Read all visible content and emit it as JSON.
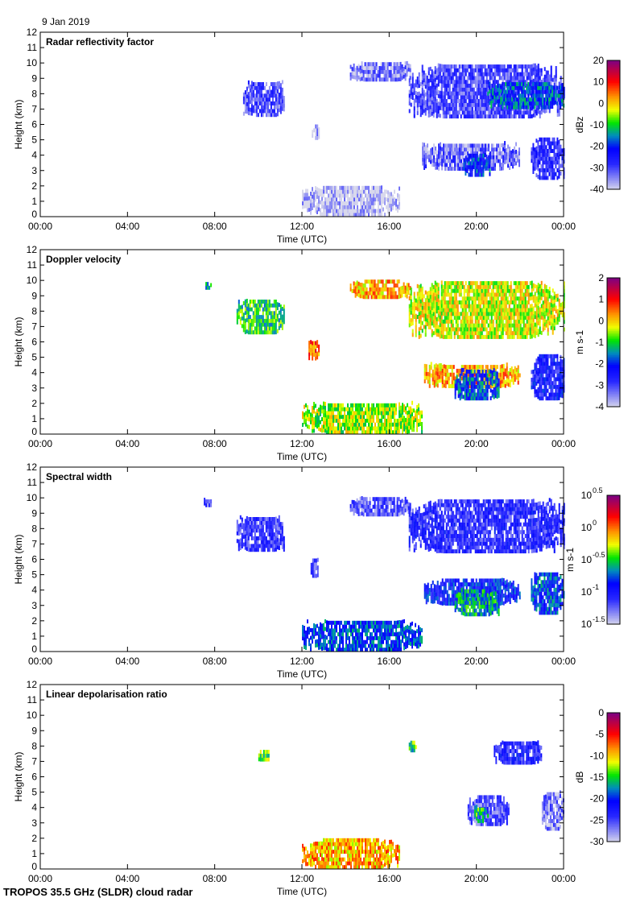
{
  "date_label": "9 Jan 2019",
  "footer": "TROPOS 35.5 GHz (SLDR) cloud radar",
  "chart_data": [
    {
      "type": "heatmap",
      "title": "Radar reflectivity factor",
      "xlabel": "Time (UTC)",
      "ylabel": "Height (km)",
      "x_ticks": [
        "00:00",
        "04:00",
        "08:00",
        "12:00",
        "16:00",
        "20:00",
        "00:00"
      ],
      "y_ticks": [
        "0",
        "1",
        "2",
        "3",
        "4",
        "5",
        "6",
        "7",
        "8",
        "9",
        "10",
        "11",
        "12"
      ],
      "xlim_hours": [
        0,
        24
      ],
      "ylim_km": [
        0,
        12
      ],
      "colorbar": {
        "label": "dBz",
        "range": [
          -40,
          20
        ],
        "ticks": [
          "20",
          "10",
          "0",
          "-10",
          "-20",
          "-30",
          "-40"
        ],
        "scale": "linear"
      },
      "regions": [
        {
          "t": [
            9.3,
            11.2
          ],
          "h": [
            6.5,
            8.7
          ],
          "value": -30
        },
        {
          "t": [
            12.45,
            12.75
          ],
          "h": [
            5.0,
            5.9
          ],
          "value": -38
        },
        {
          "t": [
            12.0,
            16.5
          ],
          "h": [
            0.0,
            1.8
          ],
          "value": -39
        },
        {
          "t": [
            14.2,
            17.0
          ],
          "h": [
            8.8,
            9.9
          ],
          "value": -34
        },
        {
          "t": [
            16.9,
            24.0
          ],
          "h": [
            6.4,
            9.8
          ],
          "value": -29
        },
        {
          "t": [
            20.5,
            24.0
          ],
          "h": [
            7.0,
            8.6
          ],
          "value": -18
        },
        {
          "t": [
            17.5,
            22.0
          ],
          "h": [
            3.0,
            4.7
          ],
          "value": -33
        },
        {
          "t": [
            19.4,
            20.6
          ],
          "h": [
            2.6,
            4.0
          ],
          "value": -20
        },
        {
          "t": [
            22.5,
            24.0
          ],
          "h": [
            2.4,
            5.0
          ],
          "value": -27
        }
      ]
    },
    {
      "type": "heatmap",
      "title": "Doppler velocity",
      "xlabel": "Time (UTC)",
      "ylabel": "Height (km)",
      "x_ticks": [
        "00:00",
        "04:00",
        "08:00",
        "12:00",
        "16:00",
        "20:00",
        "00:00"
      ],
      "y_ticks": [
        "0",
        "1",
        "2",
        "3",
        "4",
        "5",
        "6",
        "7",
        "8",
        "9",
        "10",
        "11",
        "12"
      ],
      "xlim_hours": [
        0,
        24
      ],
      "ylim_km": [
        0,
        12
      ],
      "colorbar": {
        "label": "m s-1",
        "range": [
          -4,
          2
        ],
        "ticks": [
          "2",
          "1",
          "0",
          "-1",
          "-2",
          "-3",
          "-4"
        ],
        "scale": "linear"
      },
      "regions": [
        {
          "t": [
            7.5,
            7.8
          ],
          "h": [
            9.4,
            9.8
          ],
          "value": -1.2
        },
        {
          "t": [
            9.0,
            11.2
          ],
          "h": [
            6.5,
            8.7
          ],
          "value": -1.0
        },
        {
          "t": [
            12.3,
            12.75
          ],
          "h": [
            4.8,
            6.0
          ],
          "value": 0.6
        },
        {
          "t": [
            14.2,
            17.0
          ],
          "h": [
            8.8,
            9.9
          ],
          "value": 0.2
        },
        {
          "t": [
            16.9,
            24.0
          ],
          "h": [
            6.2,
            9.8
          ],
          "value": -0.3
        },
        {
          "t": [
            17.6,
            22.0
          ],
          "h": [
            3.0,
            4.5
          ],
          "value": 0.2
        },
        {
          "t": [
            19.0,
            21.0
          ],
          "h": [
            2.2,
            4.2
          ],
          "value": -1.8
        },
        {
          "t": [
            22.5,
            24.0
          ],
          "h": [
            2.2,
            5.0
          ],
          "value": -2.5
        },
        {
          "t": [
            12.0,
            17.5
          ],
          "h": [
            0.0,
            2.0
          ],
          "value": -0.5
        }
      ]
    },
    {
      "type": "heatmap",
      "title": "Spectral width",
      "xlabel": "Time (UTC)",
      "ylabel": "Height (km)",
      "x_ticks": [
        "00:00",
        "04:00",
        "08:00",
        "12:00",
        "16:00",
        "20:00",
        "00:00"
      ],
      "y_ticks": [
        "0",
        "1",
        "2",
        "3",
        "4",
        "5",
        "6",
        "7",
        "8",
        "9",
        "10",
        "11",
        "12"
      ],
      "xlim_hours": [
        0,
        24
      ],
      "ylim_km": [
        0,
        12
      ],
      "colorbar": {
        "label": "m s-1",
        "range": [
          -1.5,
          0.5
        ],
        "ticks": [
          "0.5",
          "0",
          "-0.5",
          "-1",
          "-1.5"
        ],
        "scale": "log10"
      },
      "regions": [
        {
          "t": [
            7.5,
            7.8
          ],
          "h": [
            9.4,
            9.8
          ],
          "value": -1.2
        },
        {
          "t": [
            9.0,
            11.2
          ],
          "h": [
            6.5,
            8.7
          ],
          "value": -1.1
        },
        {
          "t": [
            12.4,
            12.75
          ],
          "h": [
            4.8,
            6.0
          ],
          "value": -1.1
        },
        {
          "t": [
            14.2,
            17.0
          ],
          "h": [
            8.8,
            9.9
          ],
          "value": -1.2
        },
        {
          "t": [
            16.9,
            24.0
          ],
          "h": [
            6.4,
            9.8
          ],
          "value": -1.05
        },
        {
          "t": [
            17.6,
            22.0
          ],
          "h": [
            3.0,
            4.6
          ],
          "value": -0.9
        },
        {
          "t": [
            19.0,
            21.0
          ],
          "h": [
            2.3,
            4.0
          ],
          "value": -0.6
        },
        {
          "t": [
            22.5,
            24.0
          ],
          "h": [
            2.4,
            5.0
          ],
          "value": -0.8
        },
        {
          "t": [
            12.0,
            17.5
          ],
          "h": [
            0.0,
            2.0
          ],
          "value": -0.8
        }
      ]
    },
    {
      "type": "heatmap",
      "title": "Linear depolarisation ratio",
      "xlabel": "Time (UTC)",
      "ylabel": "Height (km)",
      "x_ticks": [
        "00:00",
        "04:00",
        "08:00",
        "12:00",
        "16:00",
        "20:00",
        "00:00"
      ],
      "y_ticks": [
        "0",
        "1",
        "2",
        "3",
        "4",
        "5",
        "6",
        "7",
        "8",
        "9",
        "10",
        "11",
        "12"
      ],
      "xlim_hours": [
        0,
        24
      ],
      "ylim_km": [
        0,
        12
      ],
      "colorbar": {
        "label": "dB",
        "range": [
          -30,
          0
        ],
        "ticks": [
          "0",
          "-5",
          "-10",
          "-15",
          "-20",
          "-25",
          "-30"
        ],
        "scale": "linear"
      },
      "regions": [
        {
          "t": [
            10.0,
            10.5
          ],
          "h": [
            7.0,
            7.6
          ],
          "value": -14
        },
        {
          "t": [
            16.9,
            17.2
          ],
          "h": [
            7.6,
            8.2
          ],
          "value": -15
        },
        {
          "t": [
            20.8,
            23.0
          ],
          "h": [
            6.8,
            8.2
          ],
          "value": -23
        },
        {
          "t": [
            19.6,
            21.5
          ],
          "h": [
            2.8,
            4.6
          ],
          "value": -25
        },
        {
          "t": [
            19.9,
            20.5
          ],
          "h": [
            3.0,
            4.0
          ],
          "value": -15
        },
        {
          "t": [
            23.0,
            24.0
          ],
          "h": [
            2.5,
            5.0
          ],
          "value": -27
        },
        {
          "t": [
            12.0,
            16.5
          ],
          "h": [
            0.0,
            1.8
          ],
          "value": -9
        }
      ]
    }
  ]
}
